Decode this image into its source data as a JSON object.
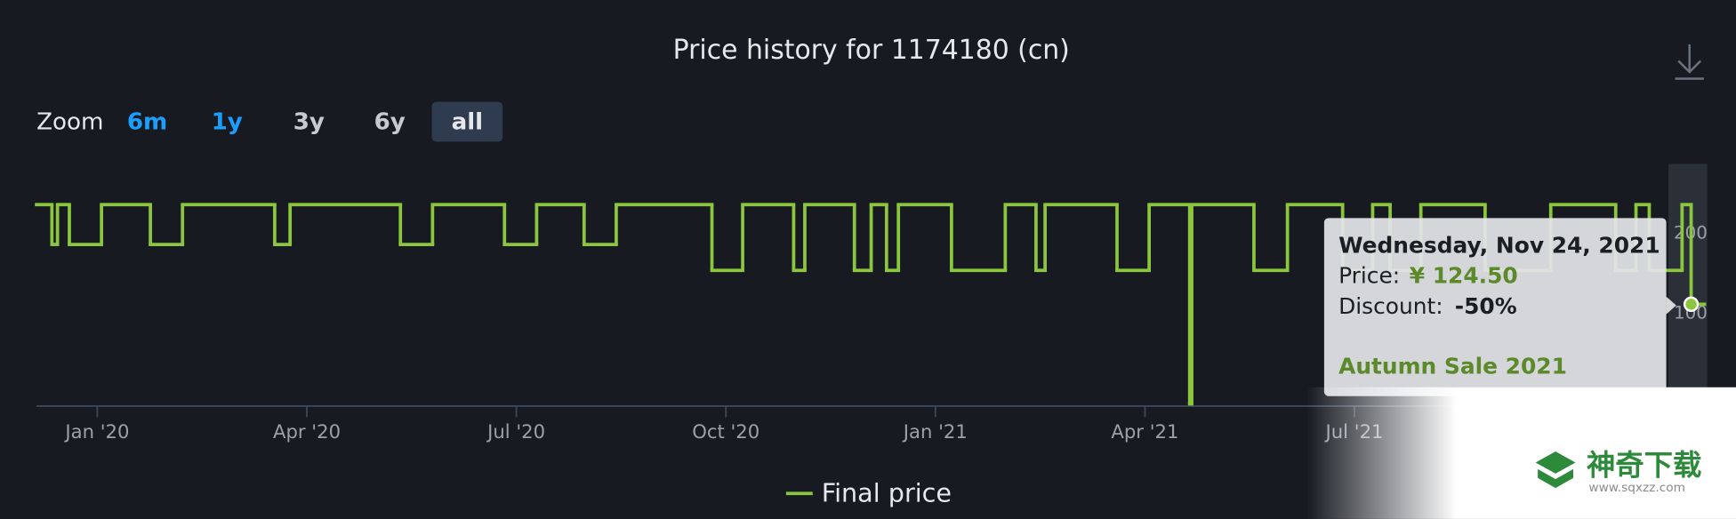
{
  "chart_data": {
    "type": "step-line",
    "title": "Price history for 1174180 (cn)",
    "zoom": {
      "label": "Zoom",
      "options": [
        "6m",
        "1y",
        "3y",
        "6y",
        "all"
      ]
    },
    "x": [
      -0.87,
      -0.65,
      -0.57,
      -0.4,
      0.06,
      0.76,
      1.22,
      2.54,
      2.76,
      4.34,
      4.8,
      5.83,
      6.29,
      6.97,
      7.43,
      8.8,
      9.24,
      9.97,
      10.13,
      10.84,
      11.08,
      11.3,
      11.47,
      12.23,
      13.0,
      13.44,
      13.57,
      14.6,
      15.06,
      15.64,
      15.67,
      16.56,
      17.04,
      17.83,
      18.26,
      18.51,
      18.95,
      19.87,
      20.81,
      21.74,
      22.03,
      22.22,
      22.69,
      22.82,
      23.01
    ],
    "series": [
      {
        "name": "Final price",
        "color": "#8cc63f",
        "values": [
          249,
          199.2,
          249,
          199.2,
          249,
          199.2,
          249,
          199.2,
          249,
          199.2,
          249,
          199.2,
          249,
          199.2,
          249,
          166.83,
          249,
          166.83,
          249,
          166.83,
          249,
          166.83,
          249,
          166.83,
          249,
          166.83,
          249,
          166.83,
          249,
          0,
          249,
          166.83,
          249,
          166.83,
          249,
          166.83,
          249,
          166.83,
          249,
          166.83,
          249,
          166.83,
          249,
          124.5,
          124.5
        ]
      }
    ],
    "xlim": [
      -0.87,
      23.05
    ],
    "xticks": [
      {
        "value": 0,
        "label": "Jan '20"
      },
      {
        "value": 3,
        "label": "Apr '20"
      },
      {
        "value": 6,
        "label": "Jul '20"
      },
      {
        "value": 9,
        "label": "Oct '20"
      },
      {
        "value": 12,
        "label": "Jan '21"
      },
      {
        "value": 15,
        "label": "Apr '21"
      },
      {
        "value": 18,
        "label": "Jul '21"
      }
    ],
    "ylim": [
      0,
      300
    ],
    "yticks": [
      100,
      200
    ],
    "tooltip": {
      "date": "Wednesday, Nov 24, 2021",
      "price_label": "Price:",
      "price": "¥ 124.50",
      "discount_label": "Discount:",
      "discount": "-50%",
      "event": "Autumn Sale 2021"
    },
    "watermark": {
      "brand": "神奇下载",
      "url": "www.sqxzz.com"
    }
  }
}
